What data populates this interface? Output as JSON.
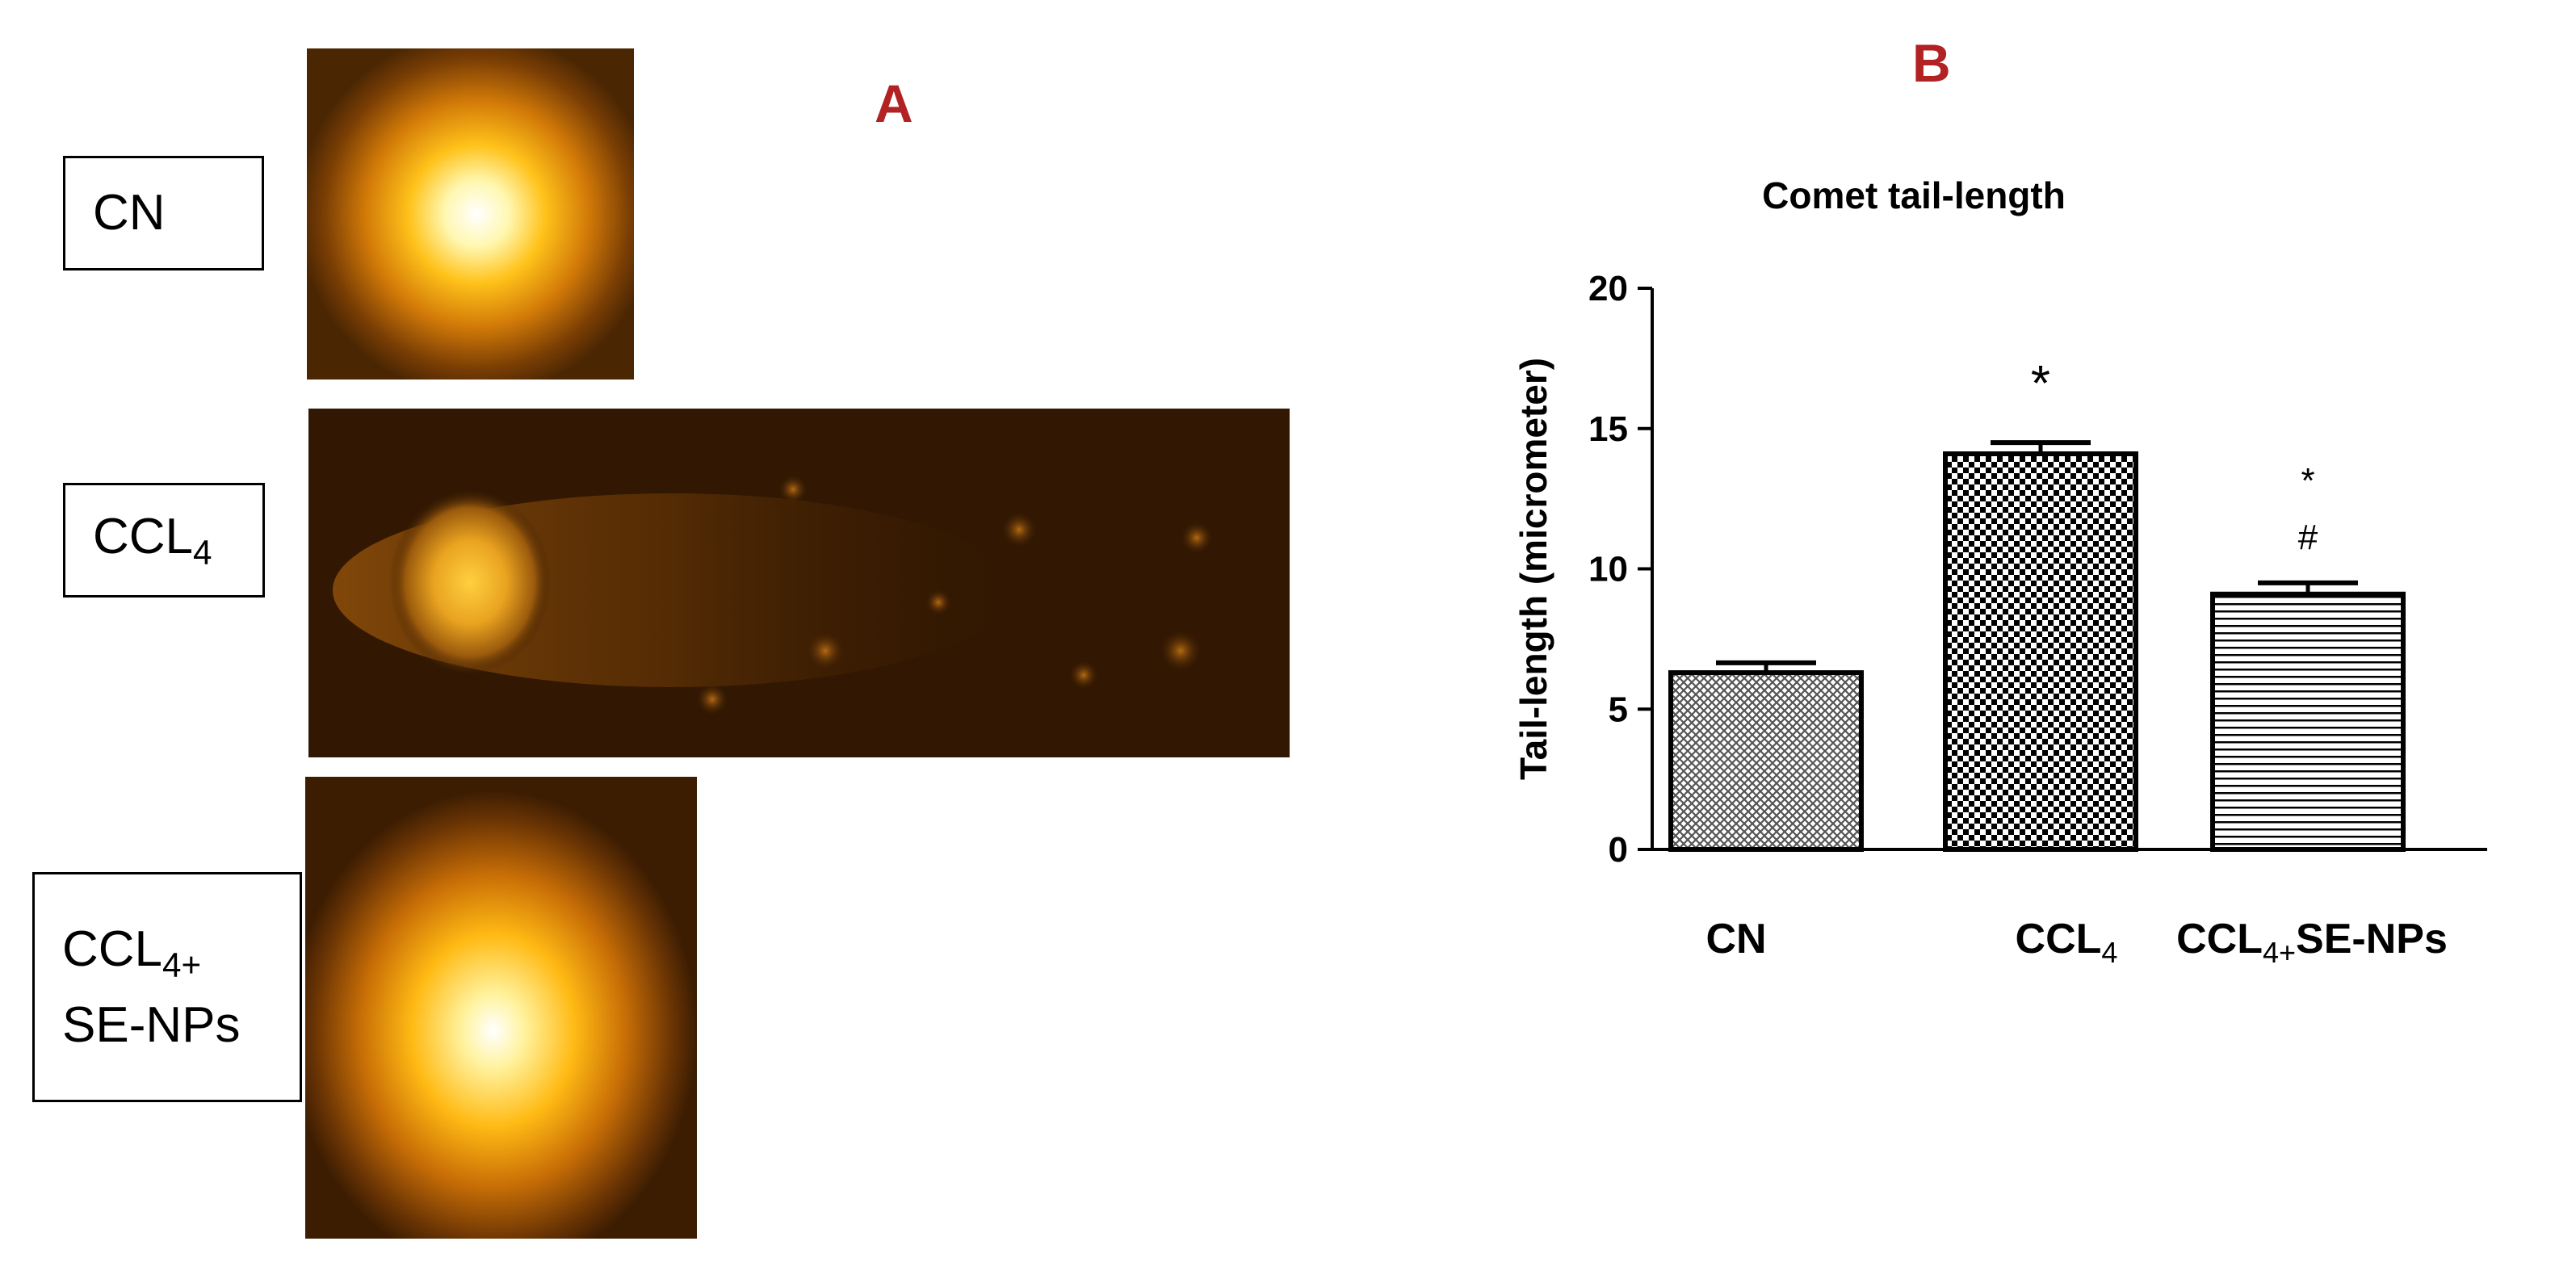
{
  "panel_a": {
    "letter": "A",
    "labels": {
      "cn": "CN",
      "ccl4_main": "CCL",
      "ccl4_sub": "4",
      "combo_line1_main": "CCL",
      "combo_line1_sub": "4+",
      "combo_line2": "SE-NPs"
    },
    "images": [
      "cn-comet-nucleus-micrograph",
      "ccl4-comet-tail-micrograph",
      "ccl4-se-nps-comet-micrograph"
    ]
  },
  "panel_b": {
    "letter": "B",
    "x_labels": {
      "cn": "CN",
      "ccl4_main": "CCL",
      "ccl4_sub": "4",
      "combo_main": "CCL",
      "combo_sub": "4+",
      "combo_rest": "SE-NPs"
    },
    "significance": {
      "ccl4": "*",
      "combo_star": "*",
      "combo_hash": "#"
    }
  },
  "chart_data": {
    "type": "bar",
    "title": "Comet tail-length",
    "xlabel": "",
    "ylabel": "Tail-length (micrometer)",
    "ylim": [
      0,
      20
    ],
    "yticks": [
      0,
      5,
      10,
      15,
      20
    ],
    "grid": false,
    "categories": [
      "CN",
      "CCL4",
      "CCL4+SE-NPs"
    ],
    "values": [
      6.3,
      14.1,
      9.1
    ],
    "errors": [
      0.35,
      0.4,
      0.4
    ],
    "fill_patterns": [
      "crosshatch",
      "checker",
      "horizontal-lines"
    ],
    "bar_outline_color": "#000000"
  }
}
